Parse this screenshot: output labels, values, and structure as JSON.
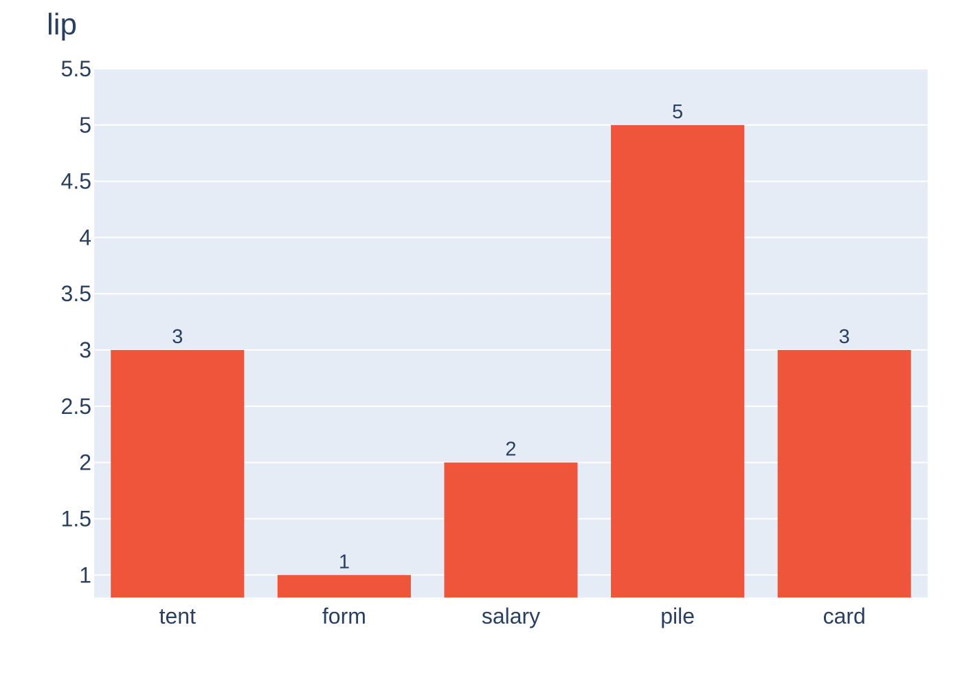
{
  "chart_data": {
    "type": "bar",
    "title": "lip",
    "xlabel": "",
    "ylabel": "",
    "categories": [
      "tent",
      "form",
      "salary",
      "pile",
      "card"
    ],
    "values": [
      3,
      1,
      2,
      5,
      3
    ],
    "data_labels": [
      "3",
      "1",
      "2",
      "5",
      "3"
    ],
    "ylim": [
      0.8,
      5.5
    ],
    "yticks": [
      1,
      1.5,
      2,
      2.5,
      3,
      3.5,
      4,
      4.5,
      5,
      5.5
    ],
    "ytick_labels": [
      "1",
      "1.5",
      "2",
      "2.5",
      "3",
      "3.5",
      "4",
      "4.5",
      "5",
      "5.5"
    ],
    "grid": true,
    "legend": "none",
    "colors": {
      "bar": "#EF553B",
      "plot_background": "#E5ECF6",
      "grid": "#ffffff",
      "text": "#2a3f5f"
    }
  }
}
